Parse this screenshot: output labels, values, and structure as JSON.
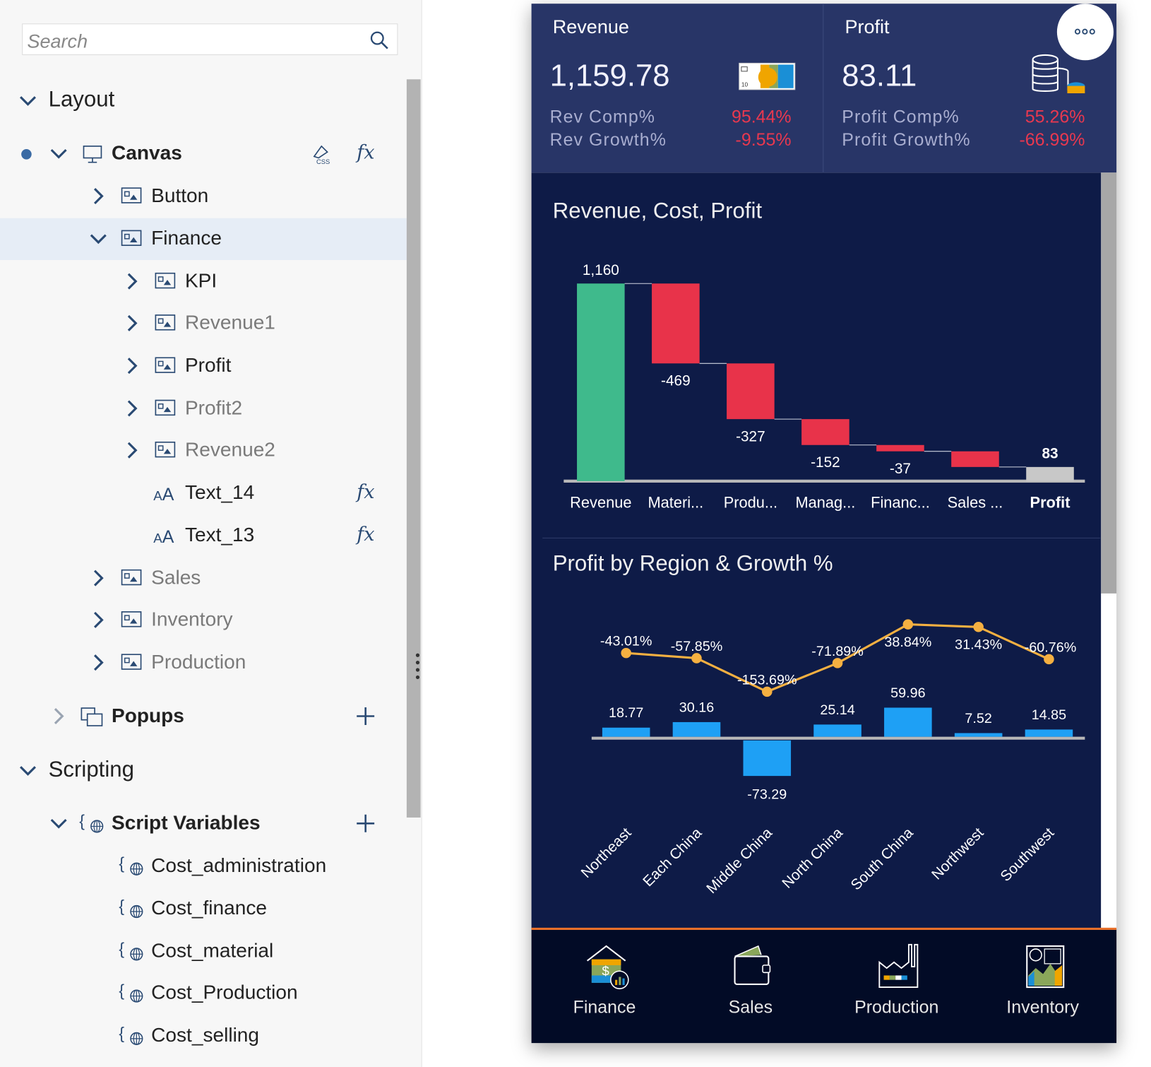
{
  "sidebar": {
    "search_placeholder": "Search",
    "sections": {
      "layout": "Layout",
      "scripting": "Scripting"
    },
    "tree": [
      {
        "label": "Canvas",
        "icon": "canvas-icon",
        "bold": true
      },
      {
        "label": "Button",
        "icon": "panel-icon"
      },
      {
        "label": "Finance",
        "icon": "panel-icon",
        "selected": true
      },
      {
        "label": "KPI",
        "icon": "panel-icon"
      },
      {
        "label": "Revenue1",
        "icon": "panel-icon",
        "dim": true
      },
      {
        "label": "Profit",
        "icon": "panel-icon"
      },
      {
        "label": "Profit2",
        "icon": "panel-icon",
        "dim": true
      },
      {
        "label": "Revenue2",
        "icon": "panel-icon",
        "dim": true
      },
      {
        "label": "Text_14",
        "icon": "text-icon"
      },
      {
        "label": "Text_13",
        "icon": "text-icon"
      },
      {
        "label": "Sales",
        "icon": "panel-icon",
        "dim": true
      },
      {
        "label": "Inventory",
        "icon": "panel-icon",
        "dim": true
      },
      {
        "label": "Production",
        "icon": "panel-icon",
        "dim": true
      },
      {
        "label": "Popups",
        "icon": "popup-icon",
        "bold": true
      },
      {
        "label": "Script Variables",
        "icon": "script-variable-icon",
        "bold": true
      },
      {
        "label": "Cost_administration",
        "icon": "script-variable-icon"
      },
      {
        "label": "Cost_finance",
        "icon": "script-variable-icon"
      },
      {
        "label": "Cost_material",
        "icon": "script-variable-icon"
      },
      {
        "label": "Cost_Production",
        "icon": "script-variable-icon"
      },
      {
        "label": "Cost_selling",
        "icon": "script-variable-icon"
      }
    ],
    "css_label": "CSS",
    "fx_label": "fx"
  },
  "kpi": {
    "revenue": {
      "title": "Revenue",
      "value": "1,159.78",
      "comp_label": "Rev Comp%",
      "comp": "95.44%",
      "growth_label": "Rev Growth%",
      "growth": "-9.55%"
    },
    "profit": {
      "title": "Profit",
      "value": "83.11",
      "comp_label": "Profit Comp%",
      "comp": "55.26%",
      "growth_label": "Profit Growth%",
      "growth": "-66.99%"
    }
  },
  "colors": {
    "positive": "#3fba8c",
    "negative": "#e8334a",
    "total": "#c8c8c8",
    "bar": "#1ea0f5",
    "line": "#f5b041",
    "kpi_negative": "#e8384f"
  },
  "chart_data": [
    {
      "type": "bar",
      "subtype": "waterfall",
      "title": "Revenue, Cost, Profit",
      "categories": [
        "Revenue",
        "Materi...",
        "Produ...",
        "Manag...",
        "Financ...",
        "Sales ...",
        "Profit"
      ],
      "values": [
        1160,
        -469,
        -327,
        -152,
        -37,
        -92,
        83
      ],
      "labels": [
        "1,160",
        "-469",
        "-327",
        "-152",
        "-37",
        "",
        "83"
      ],
      "kinds": [
        "total",
        "delta",
        "delta",
        "delta",
        "delta",
        "delta",
        "total"
      ]
    },
    {
      "type": "bar",
      "subtype": "bar-line-combo",
      "title": "Profit by Region & Growth %",
      "categories": [
        "Northeast",
        "Each China",
        "Middle China",
        "North China",
        "South China",
        "Northwest",
        "Southwest"
      ],
      "series": [
        {
          "type": "bar",
          "values": [
            18.77,
            30.16,
            -73.29,
            25.14,
            59.96,
            7.52,
            14.85
          ],
          "labels": [
            "18.77",
            "30.16",
            "-73.29",
            "25.14",
            "59.96",
            "7.52",
            "14.85"
          ]
        },
        {
          "type": "line",
          "values": [
            -43.01,
            -57.85,
            -153.69,
            -71.89,
            38.84,
            31.43,
            -60.76
          ],
          "labels": [
            "-43.01%",
            "-57.85%",
            "-153.69%",
            "-71.89%",
            "38.84%",
            "31.43%",
            "-60.76%"
          ]
        }
      ]
    }
  ],
  "nav": [
    {
      "label": "Finance",
      "icon": "finance-house-icon"
    },
    {
      "label": "Sales",
      "icon": "wallet-icon"
    },
    {
      "label": "Production",
      "icon": "factory-icon"
    },
    {
      "label": "Inventory",
      "icon": "inventory-report-icon"
    }
  ]
}
